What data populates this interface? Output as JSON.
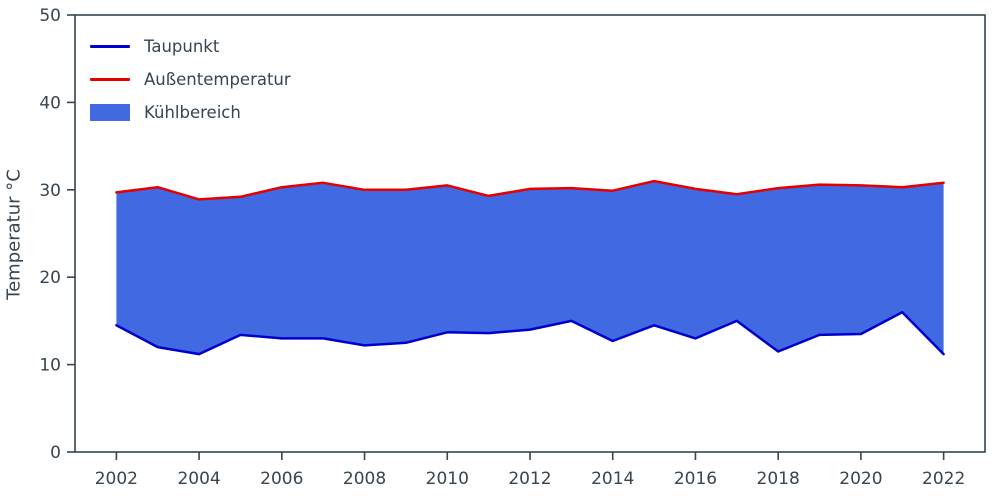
{
  "chart_data": {
    "type": "area",
    "title": "",
    "xlabel": "",
    "ylabel": "Temperatur °C",
    "xlim": [
      2001,
      2023
    ],
    "ylim": [
      0,
      50
    ],
    "grid": false,
    "legend_position": "upper left",
    "axis_color": "#36454f",
    "x": [
      2002,
      2003,
      2004,
      2005,
      2006,
      2007,
      2008,
      2009,
      2010,
      2011,
      2012,
      2013,
      2014,
      2015,
      2016,
      2017,
      2018,
      2019,
      2020,
      2021,
      2022
    ],
    "xticks": [
      2002,
      2004,
      2006,
      2008,
      2010,
      2012,
      2014,
      2016,
      2018,
      2020,
      2022
    ],
    "yticks": [
      0,
      10,
      20,
      30,
      40,
      50
    ],
    "series": [
      {
        "name": "Taupunkt",
        "color": "#0000cc",
        "values": [
          14.5,
          12.0,
          11.2,
          13.4,
          13.0,
          13.0,
          12.2,
          12.5,
          13.7,
          13.6,
          14.0,
          15.0,
          12.7,
          14.5,
          13.0,
          15.0,
          11.5,
          13.4,
          13.5,
          16.0,
          11.2
        ]
      },
      {
        "name": "Außentemperatur",
        "color": "#e50000",
        "values": [
          29.7,
          30.3,
          28.9,
          29.2,
          30.3,
          30.8,
          30.0,
          30.0,
          30.5,
          29.3,
          30.1,
          30.2,
          29.9,
          31.0,
          30.1,
          29.5,
          30.2,
          30.6,
          30.5,
          30.3,
          30.8
        ]
      }
    ],
    "fill": {
      "name": "Kühlbereich",
      "color": "#4169e1",
      "between": [
        "Taupunkt",
        "Außentemperatur"
      ]
    }
  }
}
